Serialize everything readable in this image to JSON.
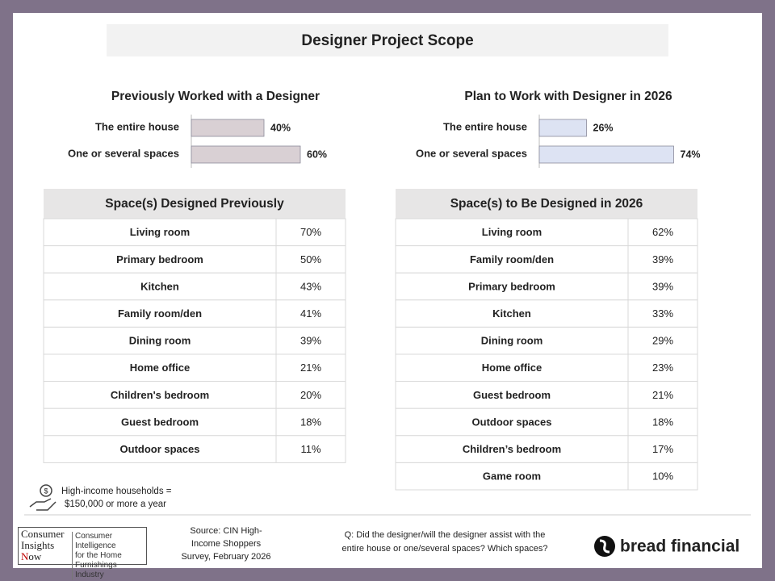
{
  "title": "Designer Project Scope",
  "chart_data": [
    {
      "type": "bar",
      "title": "Previously Worked with a Designer",
      "categories": [
        "The entire house",
        "One or several spaces"
      ],
      "values": [
        40,
        60
      ],
      "value_labels": [
        "40%",
        "60%"
      ],
      "color": "#d9d0d4"
    },
    {
      "type": "bar",
      "title": "Plan to Work with Designer in 2026",
      "categories": [
        "The entire house",
        "One or several spaces"
      ],
      "values": [
        26,
        74
      ],
      "value_labels": [
        "26%",
        "74%"
      ],
      "color": "#dde3f3"
    }
  ],
  "tables": [
    {
      "header": "Space(s) Designed Previously",
      "rows": [
        [
          "Living room",
          "70%"
        ],
        [
          "Primary bedroom",
          "50%"
        ],
        [
          "Kitchen",
          "43%"
        ],
        [
          "Family room/den",
          "41%"
        ],
        [
          "Dining room",
          "39%"
        ],
        [
          "Home office",
          "21%"
        ],
        [
          "Children's bedroom",
          "20%"
        ],
        [
          "Guest bedroom",
          "18%"
        ],
        [
          "Outdoor spaces",
          "11%"
        ]
      ]
    },
    {
      "header": "Space(s) to Be Designed in 2026",
      "rows": [
        [
          "Living room",
          "62%"
        ],
        [
          "Family room/den",
          "39%"
        ],
        [
          "Primary bedroom",
          "39%"
        ],
        [
          "Kitchen",
          "33%"
        ],
        [
          "Dining room",
          "29%"
        ],
        [
          "Home office",
          "23%"
        ],
        [
          "Guest bedroom",
          "21%"
        ],
        [
          "Outdoor spaces",
          "18%"
        ],
        [
          "Children’s bedroom",
          "17%"
        ],
        [
          "Game room",
          "10%"
        ]
      ]
    }
  ],
  "note": [
    "High-income households =",
    "$150,000 or more a year"
  ],
  "logo": {
    "words": [
      "Consumer",
      "Insights",
      "Now"
    ],
    "tagline": [
      "Consumer Intelligence",
      "for the Home",
      "Furnishings Industry"
    ]
  },
  "source": [
    "Source: CIN High-",
    "Income Shoppers",
    "Survey, February 2026"
  ],
  "question": [
    "Q: Did the designer/will the designer assist with the",
    "entire house or one/several spaces? Which spaces?"
  ],
  "brand": "bread financial"
}
